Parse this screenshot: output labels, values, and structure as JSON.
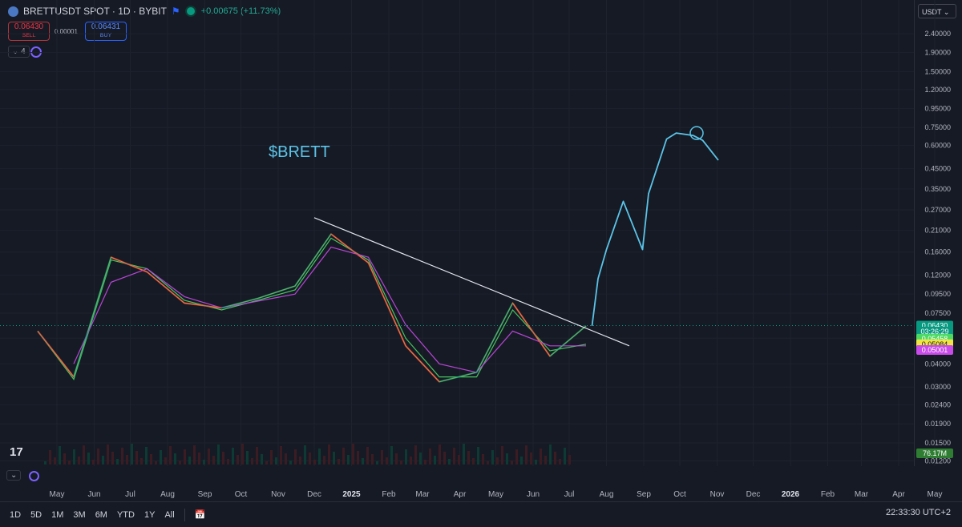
{
  "header": {
    "symbol": "BRETTUSDT SPOT · 1D · BYBIT",
    "change": "+0.00675 (+11.73%)",
    "sell_price": "0.06430",
    "sell_label": "SELL",
    "buy_price": "0.06431",
    "buy_label": "BUY",
    "spread": "0.00001",
    "indicator_count": "4"
  },
  "currency_selector": "USDT",
  "annotation_text": "$BRETT",
  "price_axis": {
    "ticks": [
      "2.40000",
      "1.90000",
      "1.50000",
      "1.20000",
      "0.95000",
      "0.75000",
      "0.60000",
      "0.45000",
      "0.35000",
      "0.27000",
      "0.21000",
      "0.16000",
      "0.12000",
      "0.09500",
      "0.07500",
      "0.05500",
      "0.04000",
      "0.03000",
      "0.02400",
      "0.01900",
      "0.01500",
      "0.01200"
    ],
    "tick_values": [
      2.4,
      1.9,
      1.5,
      1.2,
      0.95,
      0.75,
      0.6,
      0.45,
      0.35,
      0.27,
      0.21,
      0.16,
      0.12,
      0.095,
      0.075,
      0.055,
      0.04,
      0.03,
      0.024,
      0.019,
      0.015,
      0.012
    ],
    "range": [
      0.0117,
      2.55
    ],
    "log_scale": true,
    "badges": [
      {
        "label": "0.06430",
        "value": 0.0643,
        "color": "#089981"
      },
      {
        "label": "03:26:29",
        "value": 0.0597,
        "color": "#089981"
      },
      {
        "label": "0.05458",
        "value": 0.0546,
        "color": "#4cd964"
      },
      {
        "label": "0.05084",
        "value": 0.051,
        "color": "#f0e442"
      },
      {
        "label": "0.05001",
        "value": 0.0475,
        "color": "#c84ae8"
      }
    ],
    "volume_badge": "76.17M"
  },
  "time_axis": [
    "May",
    "Jun",
    "Jul",
    "Aug",
    "Sep",
    "Oct",
    "Nov",
    "Dec",
    "2025",
    "Feb",
    "Mar",
    "Apr",
    "May",
    "Jun",
    "Jul",
    "Aug",
    "Sep",
    "Oct",
    "Nov",
    "Dec",
    "2026",
    "Feb",
    "Mar",
    "Apr",
    "May"
  ],
  "timeframes": [
    "1D",
    "5D",
    "1M",
    "3M",
    "6M",
    "YTD",
    "1Y",
    "All"
  ],
  "clock": "22:33:30 UTC+2",
  "chart_data": {
    "type": "line",
    "title": "BRETTUSDT SPOT · 1D · BYBIT",
    "log_scale": true,
    "ylim": [
      0.0117,
      2.55
    ],
    "x": [
      "2024-04",
      "2024-05",
      "2024-06",
      "2024-07",
      "2024-08",
      "2024-09",
      "2024-10",
      "2024-11",
      "2024-12",
      "2025-01",
      "2025-02",
      "2025-03",
      "2025-04",
      "2025-05",
      "2025-06",
      "2025-07"
    ],
    "series": [
      {
        "values": [
          0.06,
          0.034,
          0.15,
          0.125,
          0.085,
          0.08,
          0.09,
          0.105,
          0.2,
          0.14,
          0.05,
          0.032,
          0.036,
          0.085,
          0.044,
          0.064
        ],
        "color": "#f0e442"
      },
      {
        "values": [
          0.06,
          0.033,
          0.145,
          0.13,
          0.088,
          0.078,
          0.088,
          0.1,
          0.19,
          0.145,
          0.055,
          0.034,
          0.034,
          0.078,
          0.047,
          0.051
        ],
        "color": "#4cd964"
      },
      {
        "values": [
          null,
          0.04,
          0.11,
          0.13,
          0.092,
          0.08,
          0.087,
          0.095,
          0.17,
          0.15,
          0.065,
          0.04,
          0.036,
          0.06,
          0.05,
          0.05
        ],
        "color": "#c84ae8"
      }
    ],
    "trendline": {
      "start": [
        "2024-12-01",
        0.245
      ],
      "end": [
        "2025-08-20",
        0.05
      ],
      "color": "#e0e3eb"
    },
    "projection": {
      "x": [
        "2025-07-20",
        "2025-07-25",
        "2025-08-01",
        "2025-08-15",
        "2025-08-31",
        "2025-09-05",
        "2025-09-20",
        "2025-09-28",
        "2025-10-12",
        "2025-10-20",
        "2025-11-02"
      ],
      "y": [
        0.064,
        0.115,
        0.165,
        0.3,
        0.165,
        0.33,
        0.65,
        0.7,
        0.68,
        0.64,
        0.5
      ],
      "color": "#5bc4e8"
    },
    "volume_last": "76.17M",
    "grid": true
  }
}
